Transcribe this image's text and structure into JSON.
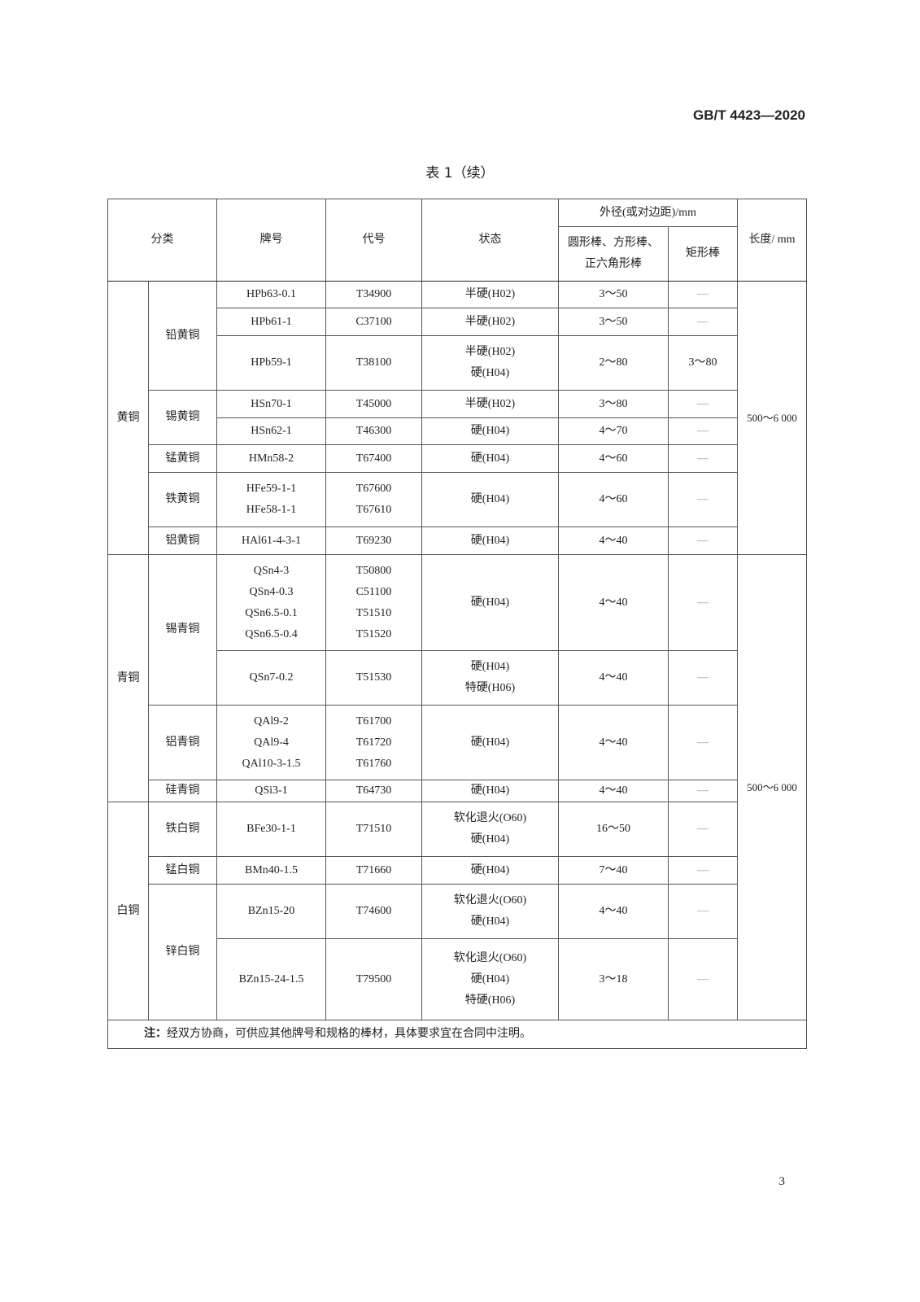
{
  "header": {
    "standard_number": "GB/T 4423—2020",
    "table_title": "表 1（续）"
  },
  "columns": {
    "classification": "分类",
    "grade": "牌号",
    "code": "代号",
    "temper": "状态",
    "outer_diameter": "外径(或对边距)/mm",
    "round_square_hex": [
      "圆形棒、方形棒、",
      "正六角形棒"
    ],
    "rectangular": "矩形棒",
    "length": "长度/ mm"
  },
  "categories": [
    {
      "name": "黄铜",
      "subcategories": [
        {
          "name": "铅黄铜",
          "grades": [
            {
              "grade": [
                "HPb63-0.1"
              ],
              "code": [
                "T34900"
              ],
              "temper": [
                "半硬(H02)"
              ],
              "dia": "3～50",
              "rect": "—"
            },
            {
              "grade": [
                "HPb61-1"
              ],
              "code": [
                "C37100"
              ],
              "temper": [
                "半硬(H02)"
              ],
              "dia": "3～50",
              "rect": "—"
            },
            {
              "grade": [
                "HPb59-1"
              ],
              "code": [
                "T38100"
              ],
              "temper": [
                "半硬(H02)",
                "硬(H04)"
              ],
              "dia": "2～80",
              "rect": "3～80"
            }
          ]
        },
        {
          "name": "锡黄铜",
          "grades": [
            {
              "grade": [
                "HSn70-1"
              ],
              "code": [
                "T45000"
              ],
              "temper": [
                "半硬(H02)"
              ],
              "dia": "3～80",
              "rect": "—"
            },
            {
              "grade": [
                "HSn62-1"
              ],
              "code": [
                "T46300"
              ],
              "temper": [
                "硬(H04)"
              ],
              "dia": "4～70",
              "rect": "—"
            }
          ]
        },
        {
          "name": "锰黄铜",
          "grades": [
            {
              "grade": [
                "HMn58-2"
              ],
              "code": [
                "T67400"
              ],
              "temper": [
                "硬(H04)"
              ],
              "dia": "4～60",
              "rect": "—"
            }
          ]
        },
        {
          "name": "铁黄铜",
          "grades": [
            {
              "grade": [
                "HFe59-1-1",
                "HFe58-1-1"
              ],
              "code": [
                "T67600",
                "T67610"
              ],
              "temper": [
                "硬(H04)"
              ],
              "dia": "4～60",
              "rect": "—"
            }
          ]
        },
        {
          "name": "铝黄铜",
          "grades": [
            {
              "grade": [
                "HAl61-4-3-1"
              ],
              "code": [
                "T69230"
              ],
              "temper": [
                "硬(H04)"
              ],
              "dia": "4～40",
              "rect": "—"
            }
          ]
        }
      ]
    },
    {
      "name": "青铜",
      "subcategories": [
        {
          "name": "锡青铜",
          "grades": [
            {
              "grade": [
                "QSn4-3",
                "QSn4-0.3",
                "QSn6.5-0.1",
                "QSn6.5-0.4"
              ],
              "code": [
                "T50800",
                "C51100",
                "T51510",
                "T51520"
              ],
              "temper": [
                "硬(H04)"
              ],
              "dia": "4～40",
              "rect": "—"
            },
            {
              "grade": [
                "QSn7-0.2"
              ],
              "code": [
                "T51530"
              ],
              "temper": [
                "硬(H04)",
                "特硬(H06)"
              ],
              "dia": "4～40",
              "rect": "—"
            }
          ]
        },
        {
          "name": "铝青铜",
          "grades": [
            {
              "grade": [
                "QAl9-2",
                "QAl9-4",
                "QAl10-3-1.5"
              ],
              "code": [
                "T61700",
                "T61720",
                "T61760"
              ],
              "temper": [
                "硬(H04)"
              ],
              "dia": "4～40",
              "rect": "—"
            }
          ]
        },
        {
          "name": "硅青铜",
          "grades": [
            {
              "grade": [
                "QSi3-1"
              ],
              "code": [
                "T64730"
              ],
              "temper": [
                "硬(H04)"
              ],
              "dia": "4～40",
              "rect": "—"
            }
          ]
        }
      ]
    },
    {
      "name": "白铜",
      "subcategories": [
        {
          "name": "铁白铜",
          "grades": [
            {
              "grade": [
                "BFe30-1-1"
              ],
              "code": [
                "T71510"
              ],
              "temper": [
                "软化退火(O60)",
                "硬(H04)"
              ],
              "dia": "16～50",
              "rect": "—"
            }
          ]
        },
        {
          "name": "锰白铜",
          "grades": [
            {
              "grade": [
                "BMn40-1.5"
              ],
              "code": [
                "T71660"
              ],
              "temper": [
                "硬(H04)"
              ],
              "dia": "7～40",
              "rect": "—"
            }
          ]
        },
        {
          "name": "锌白铜",
          "grades": [
            {
              "grade": [
                "BZn15-20"
              ],
              "code": [
                "T74600"
              ],
              "temper": [
                "软化退火(O60)",
                "硬(H04)"
              ],
              "dia": "4～40",
              "rect": "—"
            },
            {
              "grade": [
                "BZn15-24-1.5"
              ],
              "code": [
                "T79500"
              ],
              "temper": [
                "软化退火(O60)",
                "硬(H04)",
                "特硬(H06)"
              ],
              "dia": "3～18",
              "rect": "—"
            }
          ]
        }
      ]
    }
  ],
  "length_groups": [
    {
      "value": "500～6 000",
      "categories": [
        "黄铜"
      ]
    },
    {
      "value": "500～6 000",
      "categories": [
        "青铜",
        "白铜"
      ]
    }
  ],
  "note": {
    "label": "注：",
    "text": "经双方协商，可供应其他牌号和规格的棒材，具体要求宜在合同中注明。"
  },
  "page_number": "3"
}
